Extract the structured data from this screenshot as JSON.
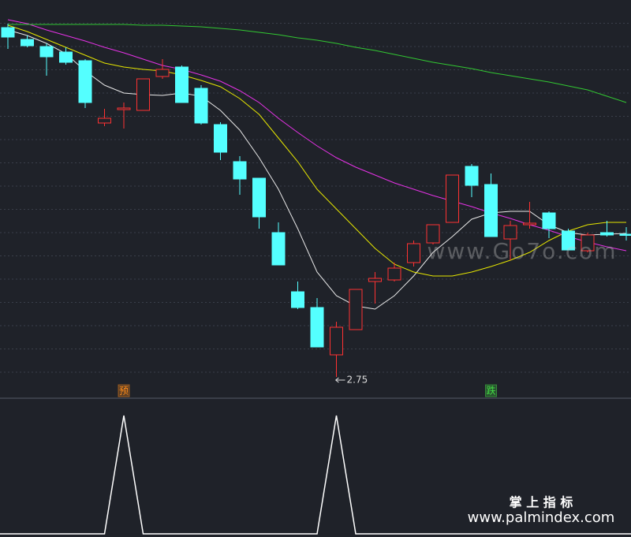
{
  "chart_data": [
    {
      "type": "candlestick",
      "ylim": [
        2.615,
        5.14
      ],
      "grid": true,
      "up_color": "#ff3232",
      "down_color": "#54ffff",
      "open": [
        4.965,
        4.89,
        4.845,
        4.81,
        4.755,
        4.36,
        4.445,
        4.44,
        4.655,
        4.715,
        4.58,
        4.35,
        4.115,
        4.01,
        3.665,
        3.29,
        3.19,
        2.89,
        3.05,
        3.355,
        3.365,
        3.475,
        3.6,
        3.73,
        4.085,
        3.97,
        3.625,
        3.715,
        3.79,
        3.675,
        3.55,
        3.665,
        3.655
      ],
      "high": [
        4.99,
        4.915,
        4.865,
        4.84,
        4.765,
        4.45,
        4.49,
        4.64,
        4.765,
        4.725,
        4.6,
        4.365,
        4.15,
        4.01,
        3.73,
        3.355,
        3.25,
        3.1,
        3.305,
        3.415,
        3.475,
        3.615,
        3.715,
        4.03,
        4.1,
        4.04,
        3.74,
        3.86,
        3.8,
        3.69,
        3.665,
        3.74,
        3.7
      ],
      "low": [
        4.83,
        4.84,
        4.66,
        4.73,
        4.455,
        4.34,
        4.325,
        4.44,
        4.64,
        4.49,
        4.35,
        4.125,
        3.905,
        3.69,
        3.46,
        3.18,
        2.94,
        2.75,
        3.05,
        3.215,
        3.355,
        3.45,
        3.59,
        3.73,
        3.89,
        3.64,
        3.49,
        3.69,
        3.63,
        3.555,
        3.54,
        3.64,
        3.615
      ],
      "close": [
        4.905,
        4.85,
        4.78,
        4.745,
        4.49,
        4.39,
        4.455,
        4.64,
        4.7,
        4.49,
        4.36,
        4.175,
        4.005,
        3.765,
        3.46,
        3.19,
        2.94,
        3.065,
        3.305,
        3.375,
        3.44,
        3.595,
        3.715,
        4.03,
        3.965,
        3.64,
        3.71,
        3.725,
        3.69,
        3.555,
        3.65,
        3.65,
        3.65
      ],
      "lines": [
        {
          "color": "#e8e8e8",
          "values": [
            4.95,
            4.915,
            4.865,
            4.8,
            4.69,
            4.6,
            4.55,
            4.54,
            4.535,
            4.55,
            4.53,
            4.44,
            4.315,
            4.14,
            3.94,
            3.69,
            3.415,
            3.265,
            3.2,
            3.18,
            3.265,
            3.39,
            3.54,
            3.64,
            3.75,
            3.79,
            3.8,
            3.8,
            3.715,
            3.665,
            3.65,
            3.655,
            3.66
          ]
        },
        {
          "color": "#e6e600",
          "values": [
            4.98,
            4.94,
            4.89,
            4.84,
            4.79,
            4.74,
            4.715,
            4.7,
            4.69,
            4.665,
            4.63,
            4.59,
            4.515,
            4.415,
            4.265,
            4.115,
            3.94,
            3.815,
            3.69,
            3.565,
            3.465,
            3.415,
            3.39,
            3.39,
            3.415,
            3.45,
            3.49,
            3.54,
            3.615,
            3.675,
            3.715,
            3.73,
            3.73
          ]
        },
        {
          "color": "#e632e6",
          "values": [
            5.015,
            4.99,
            4.95,
            4.915,
            4.88,
            4.84,
            4.805,
            4.765,
            4.725,
            4.7,
            4.665,
            4.625,
            4.565,
            4.49,
            4.39,
            4.3,
            4.215,
            4.14,
            4.08,
            4.03,
            3.98,
            3.94,
            3.9,
            3.865,
            3.83,
            3.79,
            3.755,
            3.715,
            3.68,
            3.64,
            3.605,
            3.575,
            3.55
          ]
        },
        {
          "color": "#32c832",
          "values": [
            4.985,
            4.985,
            4.985,
            4.985,
            4.985,
            4.985,
            4.985,
            4.98,
            4.98,
            4.975,
            4.97,
            4.96,
            4.95,
            4.935,
            4.92,
            4.9,
            4.885,
            4.865,
            4.84,
            4.82,
            4.795,
            4.77,
            4.745,
            4.725,
            4.705,
            4.68,
            4.66,
            4.64,
            4.62,
            4.595,
            4.57,
            4.53,
            4.49
          ]
        }
      ],
      "signals": [
        null,
        null,
        null,
        null,
        null,
        null,
        "预",
        null,
        null,
        null,
        null,
        null,
        null,
        null,
        null,
        null,
        null,
        null,
        null,
        null,
        null,
        null,
        null,
        null,
        null,
        "跌",
        null,
        null,
        null,
        null,
        null,
        null,
        null
      ],
      "signal_colors": {
        "预": "#ff8c1a",
        "跌": "#44dd44"
      }
    },
    {
      "type": "line",
      "ylim": [
        0,
        1
      ],
      "color": "#ffffff",
      "values": [
        0,
        0,
        0,
        0,
        0,
        0,
        1,
        0,
        0,
        0,
        0,
        0,
        0,
        0,
        0,
        0,
        0,
        1,
        0,
        0,
        0,
        0,
        0,
        0,
        0,
        0,
        0,
        0,
        0,
        0,
        0,
        0,
        0
      ]
    }
  ],
  "watermark": {
    "site": "www.Go7o.com",
    "brand": "掌 上 指 标",
    "url": "www.palmindex.com"
  }
}
